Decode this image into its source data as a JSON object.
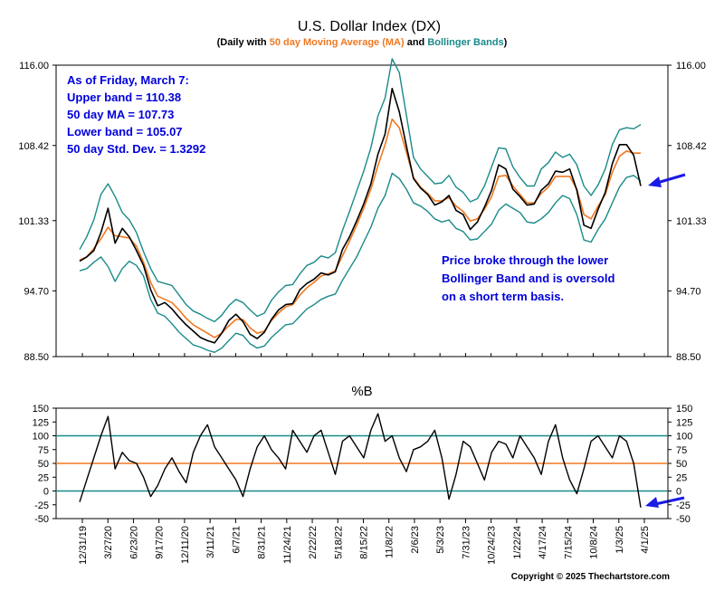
{
  "chart_data": [
    {
      "type": "line",
      "title": "U.S. Dollar Index (DX)",
      "subtitle": {
        "prefix": "(Daily with ",
        "ma": "50 day Moving Average (MA)",
        "mid": " and ",
        "bb": "Bollinger Bands",
        "suffix": ")"
      },
      "y_ticks": [
        "116.00",
        "108.42",
        "101.33",
        "94.70",
        "88.50"
      ],
      "y_tick_values": [
        116.0,
        108.42,
        101.33,
        94.7,
        88.5
      ],
      "ylim": [
        88.5,
        116.0
      ],
      "x_ticks": [
        "12/31/19",
        "3/27/20",
        "6/23/20",
        "9/17/20",
        "12/11/20",
        "3/11/21",
        "6/7/21",
        "8/31/21",
        "11/24/21",
        "2/22/22",
        "5/18/22",
        "8/15/22",
        "11/8/22",
        "2/6/23",
        "5/3/23",
        "7/31/23",
        "10/24/23",
        "1/22/24",
        "4/17/24",
        "7/15/24",
        "10/8/24",
        "1/3/25",
        "4/1/25"
      ],
      "grid": false,
      "colors": {
        "price": "#000000",
        "ma": "#f07820",
        "bands": "#1a8a8a",
        "annotation": "#0000dd",
        "arrow": "#1a1ae6"
      },
      "series": [
        {
          "name": "Price",
          "values": [
            97.5,
            97.9,
            98.5,
            100.2,
            102.5,
            99.2,
            100.6,
            99.8,
            98.5,
            97.1,
            94.8,
            93.3,
            93.6,
            93.0,
            92.2,
            91.5,
            90.9,
            90.3,
            90.0,
            89.8,
            90.7,
            91.9,
            92.5,
            91.8,
            90.6,
            90.2,
            90.8,
            92.0,
            92.9,
            93.4,
            93.5,
            94.8,
            95.4,
            95.8,
            96.4,
            96.2,
            96.5,
            98.6,
            99.8,
            101.3,
            102.9,
            104.8,
            107.6,
            109.5,
            113.8,
            111.6,
            108.4,
            105.3,
            104.4,
            103.8,
            102.8,
            103.1,
            103.7,
            102.3,
            101.9,
            100.5,
            101.2,
            102.6,
            104.2,
            106.6,
            106.2,
            104.3,
            103.6,
            102.8,
            102.9,
            104.2,
            104.8,
            106.0,
            105.9,
            106.2,
            104.2,
            100.9,
            100.6,
            102.4,
            104.0,
            106.7,
            108.5,
            108.5,
            107.5,
            104.6
          ]
        },
        {
          "name": "50 day MA",
          "values": [
            97.6,
            97.9,
            98.7,
            99.6,
            100.7,
            99.9,
            99.8,
            99.7,
            98.9,
            97.4,
            95.5,
            94.2,
            93.9,
            93.6,
            92.9,
            92.1,
            91.5,
            91.1,
            90.7,
            90.3,
            90.7,
            91.4,
            92.0,
            92.0,
            91.2,
            90.7,
            90.9,
            91.9,
            92.6,
            93.2,
            93.4,
            94.3,
            95.0,
            95.5,
            96.1,
            96.3,
            96.6,
            98.0,
            99.4,
            100.9,
            102.5,
            104.3,
            106.5,
            108.5,
            110.9,
            110.1,
            107.8,
            105.4,
            104.5,
            103.9,
            103.2,
            103.2,
            103.5,
            102.7,
            102.2,
            101.3,
            101.5,
            102.4,
            103.6,
            105.5,
            105.6,
            104.6,
            103.8,
            103.0,
            103.0,
            103.9,
            104.5,
            105.5,
            105.5,
            105.5,
            104.3,
            101.9,
            101.5,
            102.7,
            103.8,
            105.9,
            107.4,
            107.9,
            107.7,
            107.7
          ]
        },
        {
          "name": "Upper Bollinger Band",
          "values": [
            98.6,
            99.8,
            101.4,
            103.8,
            104.8,
            103.6,
            102.1,
            101.4,
            100.2,
            98.4,
            96.8,
            95.6,
            95.4,
            95.2,
            94.3,
            93.4,
            92.8,
            92.5,
            92.1,
            91.8,
            92.4,
            93.3,
            93.9,
            93.6,
            92.9,
            92.3,
            92.6,
            93.8,
            94.6,
            95.2,
            95.3,
            96.3,
            97.1,
            97.4,
            98.0,
            97.8,
            98.3,
            100.4,
            102.2,
            104.1,
            106.0,
            108.2,
            111.2,
            112.9,
            116.6,
            115.3,
            111.3,
            107.3,
            106.2,
            105.5,
            104.8,
            104.9,
            105.6,
            104.5,
            104.0,
            103.1,
            103.4,
            104.6,
            106.4,
            108.2,
            108.1,
            106.4,
            105.4,
            104.6,
            104.6,
            106.2,
            106.8,
            107.8,
            107.3,
            107.6,
            106.6,
            104.6,
            103.7,
            104.7,
            106.2,
            108.5,
            109.9,
            110.1,
            110.0,
            110.4
          ]
        },
        {
          "name": "Lower Bollinger Band",
          "values": [
            96.6,
            96.8,
            97.4,
            97.9,
            97.0,
            95.6,
            96.8,
            97.5,
            97.1,
            96.1,
            93.9,
            92.6,
            92.3,
            91.6,
            90.8,
            90.2,
            89.6,
            89.4,
            89.1,
            88.9,
            89.3,
            90.0,
            90.7,
            90.5,
            89.7,
            89.3,
            89.5,
            90.3,
            90.9,
            91.5,
            91.6,
            92.3,
            93.0,
            93.4,
            93.9,
            94.2,
            94.4,
            95.7,
            96.8,
            97.9,
            99.3,
            100.7,
            102.5,
            103.7,
            105.8,
            105.3,
            104.3,
            103.0,
            102.7,
            102.2,
            101.5,
            101.2,
            101.4,
            100.6,
            100.3,
            99.5,
            99.6,
            100.3,
            101.0,
            102.3,
            102.9,
            102.5,
            102.1,
            101.2,
            101.1,
            101.5,
            102.1,
            103.0,
            103.7,
            103.4,
            101.9,
            99.5,
            99.3,
            100.5,
            101.5,
            103.0,
            104.5,
            105.4,
            105.6,
            105.07
          ]
        }
      ],
      "annotations": {
        "box": [
          "As of Friday, March 7:",
          "Upper band = 110.38",
          "50 day MA = 107.73",
          "Lower band = 105.07",
          "50 day Std. Dev. = 1.3292"
        ],
        "note": [
          "Price broke through the lower",
          "Bollinger Band and is oversold",
          "on a short term basis."
        ]
      }
    },
    {
      "type": "line",
      "title": "%B",
      "y_ticks": [
        "150",
        "125",
        "100",
        "75",
        "50",
        "25",
        "0",
        "-25",
        "-50"
      ],
      "y_tick_values": [
        150,
        125,
        100,
        75,
        50,
        25,
        0,
        -25,
        -50
      ],
      "ylim": [
        -50,
        150
      ],
      "reference_lines": {
        "upper": 100,
        "mid": 50,
        "lower": 0
      },
      "series": [
        {
          "name": "%B",
          "values": [
            -20,
            20,
            60,
            100,
            135,
            40,
            70,
            55,
            50,
            25,
            -10,
            10,
            40,
            60,
            35,
            15,
            70,
            100,
            120,
            80,
            60,
            40,
            20,
            -10,
            40,
            80,
            100,
            75,
            60,
            40,
            110,
            90,
            70,
            100,
            110,
            70,
            30,
            90,
            100,
            80,
            60,
            110,
            140,
            90,
            100,
            60,
            35,
            75,
            80,
            90,
            110,
            60,
            -15,
            30,
            90,
            80,
            50,
            20,
            70,
            90,
            85,
            60,
            100,
            80,
            60,
            30,
            90,
            120,
            60,
            20,
            -5,
            40,
            90,
            100,
            80,
            60,
            100,
            90,
            50,
            -30
          ]
        }
      ]
    }
  ],
  "footer": {
    "copyright": "Copyright © 2025 Thechartstore.com"
  }
}
